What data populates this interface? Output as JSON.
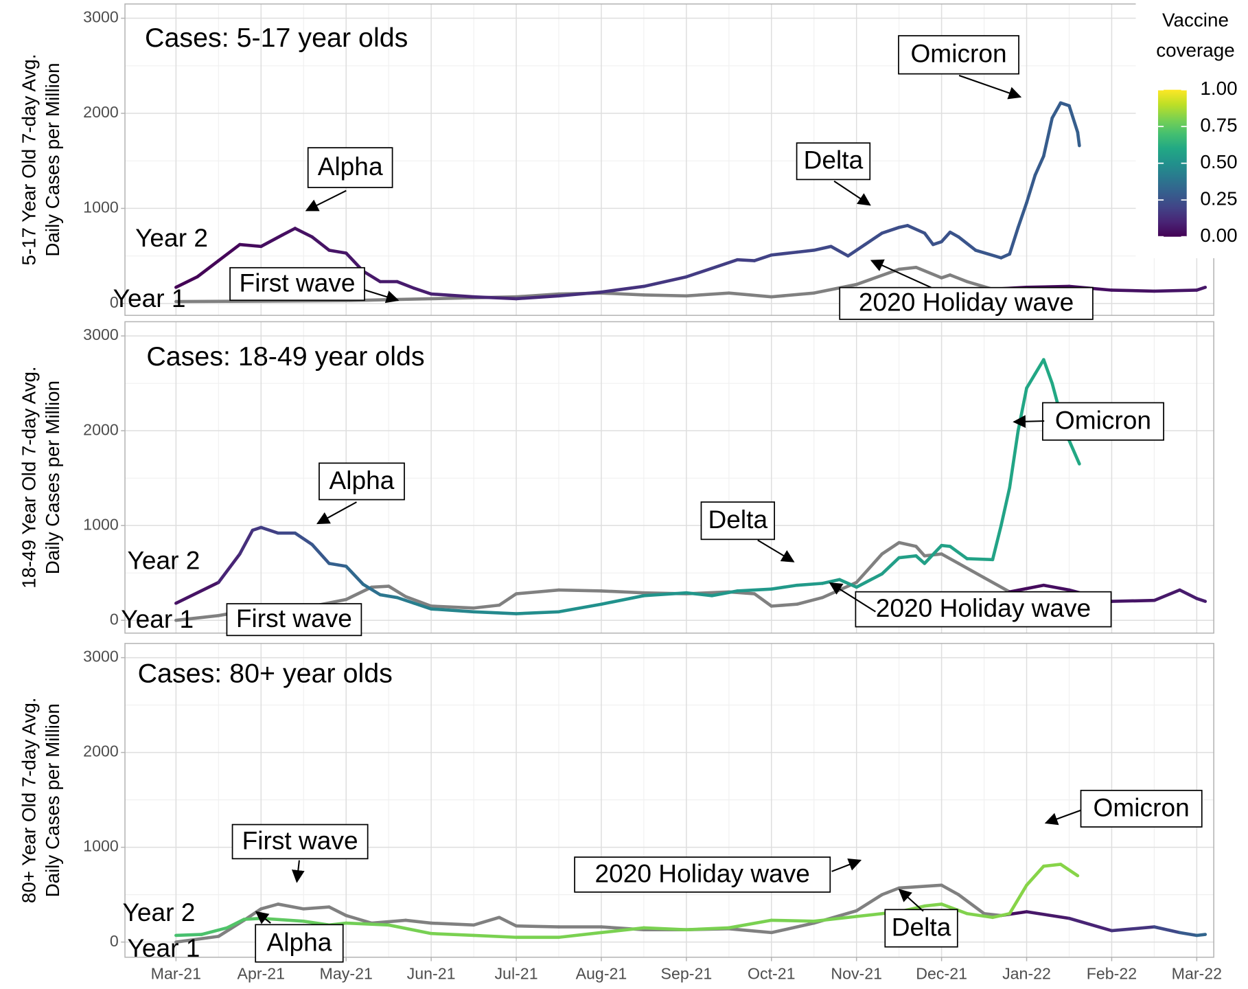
{
  "x_axis": {
    "xlim": [
      -0.6,
      12.2
    ],
    "xticks": [
      {
        "value": 0,
        "label": "Mar-21"
      },
      {
        "value": 1,
        "label": "Apr-21"
      },
      {
        "value": 2,
        "label": "May-21"
      },
      {
        "value": 3,
        "label": "Jun-21"
      },
      {
        "value": 4,
        "label": "Jul-21"
      },
      {
        "value": 5,
        "label": "Aug-21"
      },
      {
        "value": 6,
        "label": "Sep-21"
      },
      {
        "value": 7,
        "label": "Oct-21"
      },
      {
        "value": 8,
        "label": "Nov-21"
      },
      {
        "value": 9,
        "label": "Dec-21"
      },
      {
        "value": 10,
        "label": "Jan-22"
      },
      {
        "value": 11,
        "label": "Feb-22"
      },
      {
        "value": 12,
        "label": "Mar-22"
      }
    ],
    "grid": true
  },
  "colorbar": {
    "title": [
      "Vaccine",
      "coverage"
    ],
    "ticks": [
      {
        "value": 0,
        "label": "0.00"
      },
      {
        "value": 0.25,
        "label": "0.25"
      },
      {
        "value": 0.5,
        "label": "0.50"
      },
      {
        "value": 0.75,
        "label": "0.75"
      },
      {
        "value": 1,
        "label": "1.00"
      }
    ],
    "colormap": "viridis",
    "missing_color": "#808080"
  },
  "chart_data": [
    {
      "type": "line",
      "title": "Cases: 5-17 year olds",
      "ylabel": [
        "5-17 Year Old 7-day Avg.",
        "Daily Cases per Million"
      ],
      "ylim": [
        -125,
        3150
      ],
      "yticks": [
        0,
        1000,
        2000,
        3000
      ],
      "annotations": [
        "Alpha",
        "Delta",
        "Omicron",
        "First wave",
        "2020 Holiday wave"
      ],
      "series": [
        {
          "name": "Year 2",
          "x": [
            0,
            0.25,
            0.5,
            0.75,
            1,
            1.25,
            1.4,
            1.6,
            1.8,
            2,
            2.2,
            2.4,
            2.6,
            2.8,
            3,
            3.5,
            4,
            4.5,
            5,
            5.5,
            6,
            6.3,
            6.6,
            6.8,
            7,
            7.3,
            7.5,
            7.7,
            7.9,
            8.1,
            8.3,
            8.5,
            8.6,
            8.8,
            8.9,
            9,
            9.1,
            9.2,
            9.4,
            9.7,
            9.8,
            9.9,
            10,
            10.1,
            10.2,
            10.3,
            10.4,
            10.5,
            10.6,
            10.62
          ],
          "values": [
            170,
            280,
            450,
            620,
            600,
            720,
            790,
            700,
            560,
            530,
            340,
            230,
            230,
            160,
            100,
            70,
            50,
            80,
            120,
            180,
            280,
            370,
            460,
            450,
            510,
            540,
            560,
            600,
            500,
            620,
            740,
            800,
            820,
            740,
            620,
            650,
            750,
            700,
            560,
            480,
            520,
            800,
            1060,
            1350,
            1550,
            1950,
            2110,
            2080,
            1800,
            1660
          ],
          "coverage": [
            0,
            0.01,
            0.01,
            0.02,
            0.03,
            0.04,
            0.04,
            0.05,
            0.05,
            0.06,
            0.06,
            0.07,
            0.07,
            0.08,
            0.08,
            0.1,
            0.11,
            0.13,
            0.14,
            0.15,
            0.17,
            0.18,
            0.18,
            0.19,
            0.2,
            0.2,
            0.21,
            0.22,
            0.22,
            0.23,
            0.23,
            0.24,
            0.24,
            0.25,
            0.25,
            0.25,
            0.25,
            0.26,
            0.26,
            0.27,
            0.27,
            0.28,
            0.28,
            0.28,
            0.29,
            0.29,
            0.29,
            0.29,
            0.3,
            0.3
          ]
        },
        {
          "name": "Year 1",
          "x": [
            0,
            1,
            2,
            2.5,
            3,
            4,
            4.5,
            5,
            5.5,
            6,
            6.5,
            7,
            7.5,
            8,
            8.5,
            8.7,
            9,
            9.1,
            9.3,
            9.6,
            10,
            10.5,
            11,
            11.5,
            12,
            12.1
          ],
          "values": [
            20,
            25,
            30,
            40,
            50,
            70,
            100,
            110,
            90,
            80,
            110,
            70,
            110,
            200,
            360,
            380,
            270,
            300,
            230,
            150,
            170,
            180,
            140,
            130,
            140,
            170
          ],
          "coverage": [
            null,
            null,
            null,
            null,
            null,
            null,
            null,
            null,
            null,
            null,
            null,
            null,
            null,
            null,
            null,
            null,
            null,
            null,
            null,
            0.01,
            0.02,
            0.03,
            0.04,
            0.05,
            0.06,
            0.06
          ]
        }
      ]
    },
    {
      "type": "line",
      "title": "Cases: 18-49 year olds",
      "ylabel": [
        "18-49 Year Old 7-day Avg.",
        "Daily Cases per Million"
      ],
      "ylim": [
        -135,
        3150
      ],
      "yticks": [
        0,
        1000,
        2000,
        3000
      ],
      "annotations": [
        "Alpha",
        "Delta",
        "Omicron",
        "First wave",
        "2020 Holiday wave"
      ],
      "series": [
        {
          "name": "Year 2",
          "x": [
            0,
            0.5,
            0.75,
            0.9,
            1,
            1.2,
            1.4,
            1.6,
            1.8,
            2,
            2.2,
            2.4,
            2.6,
            2.8,
            3,
            3.5,
            4,
            4.5,
            5,
            5.5,
            6,
            6.3,
            6.6,
            7,
            7.3,
            7.6,
            7.8,
            8,
            8.3,
            8.5,
            8.7,
            8.8,
            9,
            9.1,
            9.3,
            9.6,
            9.7,
            9.8,
            9.9,
            10,
            10.1,
            10.2,
            10.3,
            10.45,
            10.62
          ],
          "values": [
            180,
            400,
            700,
            950,
            980,
            920,
            920,
            800,
            600,
            570,
            380,
            270,
            240,
            180,
            120,
            90,
            70,
            90,
            170,
            260,
            290,
            260,
            310,
            330,
            370,
            390,
            430,
            350,
            490,
            660,
            680,
            600,
            790,
            780,
            650,
            640,
            1000,
            1400,
            2000,
            2450,
            2600,
            2750,
            2500,
            2000,
            1650
          ],
          "coverage": [
            0.02,
            0.08,
            0.12,
            0.15,
            0.17,
            0.2,
            0.23,
            0.26,
            0.29,
            0.32,
            0.35,
            0.38,
            0.4,
            0.42,
            0.44,
            0.46,
            0.48,
            0.49,
            0.5,
            0.51,
            0.52,
            0.52,
            0.53,
            0.53,
            0.54,
            0.54,
            0.55,
            0.55,
            0.55,
            0.56,
            0.56,
            0.56,
            0.57,
            0.57,
            0.57,
            0.58,
            0.58,
            0.58,
            0.59,
            0.59,
            0.59,
            0.6,
            0.6,
            0.6,
            0.6
          ]
        },
        {
          "name": "Year 1",
          "x": [
            0,
            0.5,
            1,
            1.5,
            2,
            2.3,
            2.5,
            2.7,
            3,
            3.5,
            3.8,
            4,
            4.5,
            5,
            5.5,
            6,
            6.5,
            6.8,
            7,
            7.3,
            7.6,
            8,
            8.3,
            8.5,
            8.7,
            8.8,
            9,
            9.2,
            9.5,
            9.8,
            10.2,
            10.5,
            11,
            11.5,
            11.8,
            12,
            12.1
          ],
          "values": [
            0,
            50,
            130,
            130,
            220,
            350,
            360,
            250,
            150,
            130,
            160,
            280,
            320,
            310,
            290,
            280,
            300,
            280,
            150,
            170,
            240,
            400,
            700,
            820,
            780,
            680,
            700,
            600,
            450,
            300,
            370,
            320,
            200,
            210,
            320,
            230,
            200
          ],
          "coverage": [
            null,
            null,
            null,
            null,
            null,
            null,
            null,
            null,
            null,
            null,
            null,
            null,
            null,
            null,
            null,
            null,
            null,
            null,
            null,
            null,
            null,
            null,
            null,
            null,
            null,
            null,
            null,
            null,
            null,
            0.02,
            0.03,
            0.04,
            0.05,
            0.06,
            0.07,
            0.08,
            0.08
          ]
        }
      ]
    },
    {
      "type": "line",
      "title": "Cases: 80+ year olds",
      "ylabel": [
        "80+ Year Old 7-day Avg.",
        "Daily Cases per Million"
      ],
      "ylim": [
        -160,
        3150
      ],
      "yticks": [
        0,
        1000,
        2000,
        3000
      ],
      "annotations": [
        "Alpha",
        "Delta",
        "Omicron",
        "First wave",
        "2020 Holiday wave"
      ],
      "series": [
        {
          "name": "Year 2",
          "x": [
            0,
            0.3,
            0.6,
            0.8,
            1,
            1.5,
            1.8,
            2,
            2.5,
            3,
            3.5,
            4,
            4.5,
            5,
            5.5,
            6,
            6.5,
            7,
            7.5,
            8,
            8.5,
            8.8,
            9,
            9.3,
            9.6,
            9.8,
            10,
            10.2,
            10.4,
            10.6
          ],
          "values": [
            70,
            80,
            150,
            240,
            250,
            220,
            180,
            200,
            180,
            90,
            70,
            50,
            50,
            100,
            150,
            130,
            150,
            230,
            220,
            270,
            320,
            380,
            400,
            300,
            260,
            300,
            600,
            800,
            820,
            700
          ],
          "coverage": [
            0.7,
            0.71,
            0.72,
            0.73,
            0.74,
            0.76,
            0.77,
            0.78,
            0.79,
            0.8,
            0.8,
            0.8,
            0.8,
            0.8,
            0.8,
            0.8,
            0.8,
            0.8,
            0.8,
            0.8,
            0.81,
            0.81,
            0.81,
            0.81,
            0.81,
            0.82,
            0.82,
            0.82,
            0.82,
            0.82
          ]
        },
        {
          "name": "Year 1",
          "x": [
            0,
            0.5,
            0.8,
            1,
            1.2,
            1.5,
            1.8,
            2,
            2.3,
            2.7,
            3,
            3.5,
            3.8,
            4,
            4.5,
            5,
            5.5,
            6,
            6.5,
            7,
            7.5,
            8,
            8.3,
            8.5,
            9,
            9.2,
            9.5,
            9.7,
            10,
            10.5,
            11,
            11.5,
            11.8,
            12,
            12.1
          ],
          "values": [
            0,
            60,
            230,
            350,
            400,
            350,
            370,
            280,
            200,
            230,
            200,
            180,
            260,
            170,
            160,
            160,
            130,
            130,
            140,
            100,
            200,
            330,
            500,
            570,
            600,
            500,
            300,
            280,
            320,
            250,
            120,
            160,
            100,
            70,
            80
          ],
          "coverage": [
            null,
            null,
            null,
            null,
            null,
            null,
            null,
            null,
            null,
            null,
            null,
            null,
            null,
            null,
            null,
            null,
            null,
            null,
            null,
            null,
            null,
            null,
            null,
            null,
            null,
            null,
            null,
            0.02,
            0.05,
            0.08,
            0.12,
            0.18,
            0.25,
            0.32,
            0.33
          ]
        }
      ]
    }
  ]
}
